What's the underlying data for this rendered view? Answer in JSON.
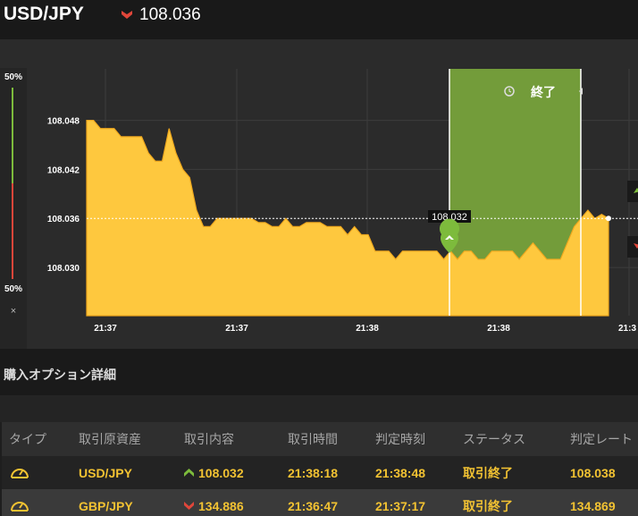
{
  "header": {
    "pair": "USD/JPY",
    "current_rate": "108.036"
  },
  "gauge": {
    "top_pct": "50%",
    "bottom_pct": "50%",
    "close": "×"
  },
  "chart": {
    "period_label": "終了",
    "marker_label": "108.032",
    "colors": {
      "area": "#fec83e",
      "window": "#739c3a",
      "grid": "#3d3d3d",
      "bg": "#2b2b2b"
    }
  },
  "chart_data": {
    "type": "area",
    "x_tick_labels": [
      "21:37",
      "21:37",
      "21:38",
      "21:38",
      "21:3"
    ],
    "y_tick_labels": [
      "108.048",
      "108.042",
      "108.036",
      "108.030"
    ],
    "ylim": [
      108.0241,
      108.0543
    ],
    "current_rate": 108.036,
    "entry_rate": 108.032,
    "series": [
      {
        "values": [
          108.048,
          108.048,
          108.047,
          108.047,
          108.047,
          108.046,
          108.046,
          108.046,
          108.046,
          108.044,
          108.043,
          108.043,
          108.047,
          108.044,
          108.042,
          108.041,
          108.037,
          108.035,
          108.035,
          108.036,
          108.036,
          108.036,
          108.036,
          108.036,
          108.036,
          108.0355,
          108.0355,
          108.035,
          108.035,
          108.036,
          108.035,
          108.035,
          108.0355,
          108.0355,
          108.0355,
          108.035,
          108.035,
          108.035,
          108.034,
          108.035,
          108.034,
          108.034,
          108.032,
          108.032,
          108.032,
          108.031,
          108.032,
          108.032,
          108.032,
          108.032,
          108.032,
          108.032,
          108.031,
          108.032,
          108.031,
          108.032,
          108.032,
          108.031,
          108.031,
          108.032,
          108.032,
          108.032,
          108.032,
          108.031,
          108.032,
          108.033,
          108.032,
          108.031,
          108.031,
          108.031,
          108.033,
          108.035,
          108.036,
          108.037,
          108.036,
          108.0365,
          108.036
        ]
      }
    ]
  },
  "section": {
    "title": "購入オプション詳細"
  },
  "table": {
    "columns": [
      "タイプ",
      "取引原資産",
      "取引内容",
      "取引時間",
      "判定時刻",
      "ステータス",
      "判定レート"
    ],
    "rows": [
      {
        "asset": "USD/JPY",
        "direction": "up",
        "detail": "108.032",
        "time": "21:38:18",
        "judge": "21:38:48",
        "status": "取引終了",
        "rate": "108.038"
      },
      {
        "asset": "GBP/JPY",
        "direction": "down",
        "detail": "134.886",
        "time": "21:36:47",
        "judge": "21:37:17",
        "status": "取引終了",
        "rate": "134.869"
      }
    ]
  }
}
